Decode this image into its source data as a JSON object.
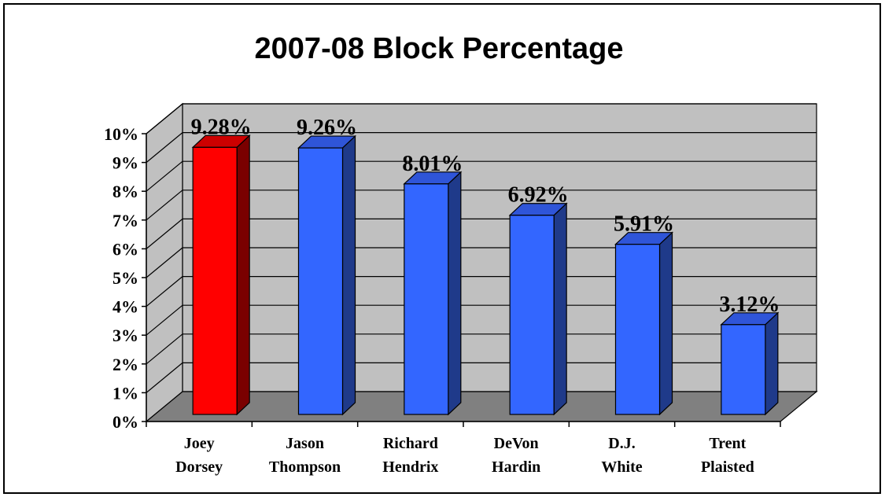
{
  "chart_data": {
    "type": "bar",
    "title": "2007-08 Block Percentage",
    "xlabel": "",
    "ylabel": "",
    "ylim": [
      0,
      10
    ],
    "y_ticks": [
      "0%",
      "1%",
      "2%",
      "3%",
      "4%",
      "5%",
      "6%",
      "7%",
      "8%",
      "9%",
      "10%"
    ],
    "categories": [
      [
        "Joey",
        "Dorsey"
      ],
      [
        "Jason",
        "Thompson"
      ],
      [
        "Richard",
        "Hendrix"
      ],
      [
        "DeVon",
        "Hardin"
      ],
      [
        "D.J.",
        "White"
      ],
      [
        "Trent",
        "Plaisted"
      ]
    ],
    "values": [
      9.28,
      9.26,
      8.01,
      6.92,
      5.91,
      3.12
    ],
    "data_labels": [
      "9.28%",
      "9.26%",
      "8.01%",
      "6.92%",
      "5.91%",
      "3.12%"
    ],
    "grid": true,
    "legend": "none",
    "style": "3d-column",
    "colors": {
      "highlight_front": "#FF0000",
      "highlight_side": "#7A0000",
      "highlight_top": "#CC0000",
      "bar_front": "#3366FF",
      "bar_side": "#1F3A8A",
      "bar_top": "#2F55D8",
      "wall": "#C0C0C0",
      "floor": "#808080"
    }
  }
}
